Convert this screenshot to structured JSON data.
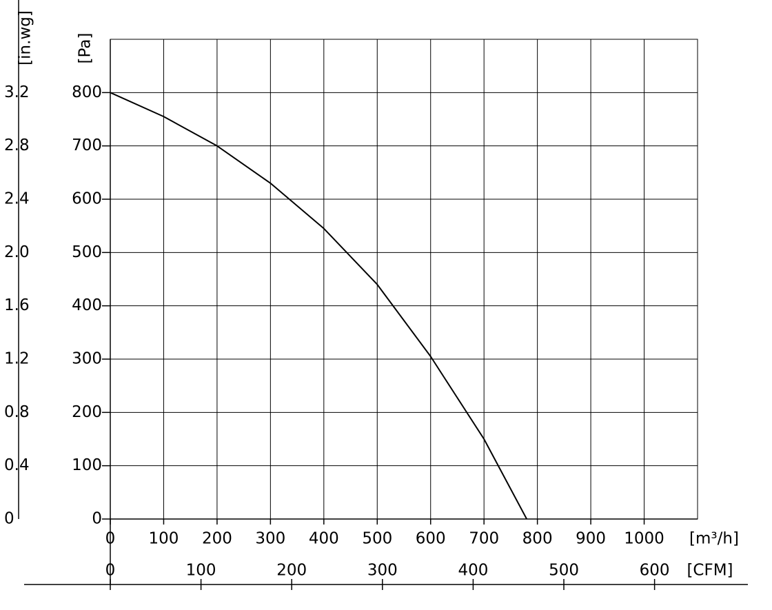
{
  "chart_data": {
    "type": "line",
    "x_unit": "[m³/h]",
    "x2_unit": "[CFM]",
    "y_unit": "[Pa]",
    "y2_unit": "[in.wg]",
    "x": [
      0,
      100,
      200,
      300,
      400,
      500,
      600,
      700,
      780
    ],
    "series": [
      {
        "color": "#000000",
        "values": [
          800,
          755,
          700,
          630,
          545,
          440,
          305,
          150,
          0
        ]
      }
    ],
    "xlim": [
      0,
      1100
    ],
    "xticks": [
      0,
      100,
      200,
      300,
      400,
      500,
      600,
      700,
      800,
      900,
      1000
    ],
    "x2lim": [
      0,
      647.4
    ],
    "x2ticks": [
      0,
      100,
      200,
      300,
      400,
      500,
      600
    ],
    "ylim": [
      0,
      900
    ],
    "yticks": [
      0,
      100,
      200,
      300,
      400,
      500,
      600,
      700,
      800
    ],
    "y2lim": [
      0,
      3.6
    ],
    "y2ticks": [
      0,
      0.4,
      0.8,
      {
        "value": 1.2,
        "label": "1.2"
      },
      1.6,
      {
        "value": 2,
        "label": "2.0"
      },
      2.4,
      2.8,
      3.2
    ],
    "grid": true
  }
}
